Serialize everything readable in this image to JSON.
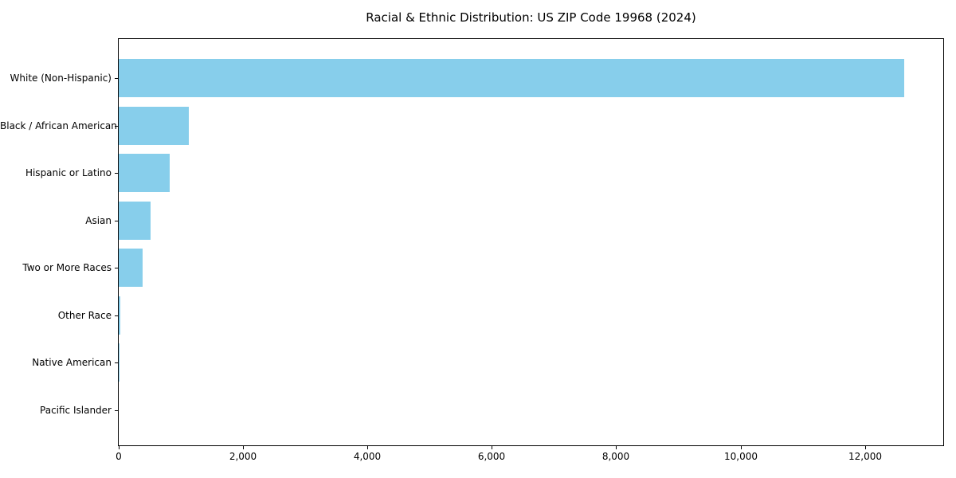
{
  "chart_data": {
    "type": "bar",
    "orientation": "horizontal",
    "title": "Racial & Ethnic Distribution: US ZIP Code 19968 (2024)",
    "xlabel": "",
    "ylabel": "",
    "categories": [
      "White (Non-Hispanic)",
      "Black / African American",
      "Hispanic or Latino",
      "Asian",
      "Two or More Races",
      "Other Race",
      "Native American",
      "Pacific Islander"
    ],
    "values": [
      12630,
      1125,
      815,
      515,
      385,
      20,
      13,
      0
    ],
    "bar_color": "#87CEEB",
    "background_color": "#ffffff",
    "axis_color": "#000000",
    "xlim": [
      0,
      13260
    ],
    "x_ticks": [
      0,
      2000,
      4000,
      6000,
      8000,
      10000,
      12000
    ],
    "x_tick_labels": [
      "0",
      "2,000",
      "4,000",
      "6,000",
      "8,000",
      "10,000",
      "12,000"
    ],
    "grid": false,
    "legend": null
  }
}
